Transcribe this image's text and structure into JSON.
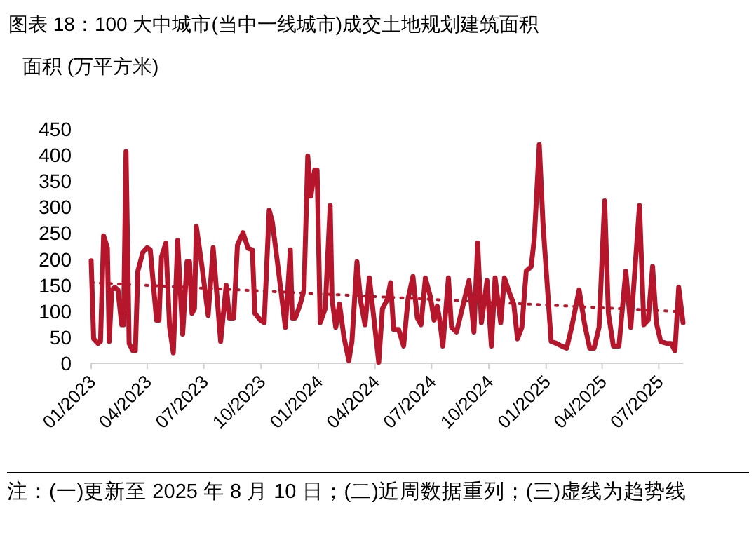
{
  "chart_data": {
    "type": "line",
    "title": "图表 18：100 大中城市(当中一线城市)成交土地规划建筑面积",
    "ylabel": "面积 (万平方米)",
    "annotations": [
      "注：(一)更新至 2025 年 8 月 10 日；(二)近周数据重列；(三)虚线为趋势线"
    ],
    "x": [
      "2023-01-01",
      "2023-01-05",
      "2023-01-12",
      "2023-01-16",
      "2023-01-21",
      "2023-01-27",
      "2023-01-30",
      "2023-02-03",
      "2023-02-08",
      "2023-02-13",
      "2023-02-19",
      "2023-02-22",
      "2023-02-26",
      "2023-03-03",
      "2023-03-09",
      "2023-03-13",
      "2023-03-17",
      "2023-03-25",
      "2023-04-01",
      "2023-04-06",
      "2023-04-16",
      "2023-04-20",
      "2023-04-24",
      "2023-05-01",
      "2023-05-07",
      "2023-05-13",
      "2023-05-20",
      "2023-05-28",
      "2023-06-04",
      "2023-06-08",
      "2023-06-12",
      "2023-06-16",
      "2023-06-19",
      "2023-06-28",
      "2023-07-08",
      "2023-07-16",
      "2023-07-21",
      "2023-07-28",
      "2023-08-06",
      "2023-08-11",
      "2023-08-18",
      "2023-08-24",
      "2023-09-02",
      "2023-09-10",
      "2023-09-17",
      "2023-09-21",
      "2023-09-30",
      "2023-10-06",
      "2023-10-14",
      "2023-10-19",
      "2023-10-29",
      "2023-11-09",
      "2023-11-17",
      "2023-11-20",
      "2023-11-25",
      "2023-12-03",
      "2023-12-09",
      "2023-12-15",
      "2023-12-20",
      "2023-12-26",
      "2023-12-30",
      "2024-01-04",
      "2024-01-12",
      "2024-01-20",
      "2024-01-23",
      "2024-01-29",
      "2024-02-04",
      "2024-02-11",
      "2024-02-19",
      "2024-02-24",
      "2024-03-03",
      "2024-03-09",
      "2024-03-16",
      "2024-03-23",
      "2024-03-31",
      "2024-04-07",
      "2024-04-13",
      "2024-04-21",
      "2024-04-26",
      "2024-05-01",
      "2024-05-09",
      "2024-05-17",
      "2024-05-24",
      "2024-06-01",
      "2024-06-08",
      "2024-06-14",
      "2024-06-21",
      "2024-06-29",
      "2024-07-05",
      "2024-07-10",
      "2024-07-14",
      "2024-07-19",
      "2024-07-28",
      "2024-08-02",
      "2024-08-10",
      "2024-08-21",
      "2024-08-30",
      "2024-09-07",
      "2024-09-13",
      "2024-09-19",
      "2024-09-28",
      "2024-10-05",
      "2024-10-11",
      "2024-10-20",
      "2024-10-26",
      "2024-11-04",
      "2024-11-10",
      "2024-11-16",
      "2024-11-23",
      "2024-11-30",
      "2024-12-08",
      "2024-12-13",
      "2024-12-21",
      "2024-12-27",
      "2025-01-09",
      "2025-01-18",
      "2025-01-26",
      "2025-02-03",
      "2025-02-11",
      "2025-02-23",
      "2025-03-04",
      "2025-03-12",
      "2025-03-19",
      "2025-03-27",
      "2025-04-05",
      "2025-04-11",
      "2025-04-19",
      "2025-04-28",
      "2025-05-09",
      "2025-05-17",
      "2025-05-31",
      "2025-06-07",
      "2025-06-14",
      "2025-06-21",
      "2025-06-27",
      "2025-07-04",
      "2025-07-14",
      "2025-07-21",
      "2025-07-27",
      "2025-08-02",
      "2025-08-09"
    ],
    "series": [
      {
        "line_style": "solid",
        "color": "#b5162b",
        "values": [
          197,
          47,
          38,
          42,
          245,
          222,
          42,
          141,
          146,
          141,
          74,
          74,
          407,
          38,
          24,
          24,
          177,
          213,
          222,
          218,
          83,
          83,
          204,
          231,
          69,
          20,
          236,
          56,
          195,
          195,
          96,
          105,
          263,
          186,
          92,
          222,
          146,
          42,
          150,
          87,
          87,
          227,
          251,
          221,
          218,
          96,
          83,
          78,
          294,
          272,
          177,
          69,
          218,
          87,
          87,
          114,
          141,
          398,
          321,
          371,
          371,
          78,
          105,
          303,
          123,
          69,
          114,
          51,
          5,
          42,
          195,
          119,
          74,
          164,
          78,
          2,
          105,
          123,
          155,
          65,
          65,
          33,
          123,
          167,
          87,
          74,
          164,
          128,
          83,
          110,
          83,
          33,
          164,
          69,
          60,
          114,
          159,
          60,
          231,
          78,
          159,
          33,
          164,
          78,
          164,
          132,
          114,
          47,
          69,
          177,
          186,
          240,
          420,
          267,
          42,
          38,
          33,
          29,
          69,
          141,
          74,
          29,
          29,
          69,
          312,
          96,
          33,
          33,
          177,
          69,
          303,
          74,
          83,
          186,
          78,
          42,
          38,
          38,
          24,
          146,
          78
        ]
      },
      {
        "line_style": "dotted",
        "color": "#b5162b",
        "x": [
          "2023-01-01",
          "2025-08-09"
        ],
        "values": [
          155,
          99
        ]
      }
    ],
    "xlim": [
      "2023-01-01",
      "2025-08-09"
    ],
    "xticks": [
      {
        "value": "2023-01-01",
        "label": "01/2023"
      },
      {
        "value": "2023-04-01",
        "label": "04/2023"
      },
      {
        "value": "2023-07-01",
        "label": "07/2023"
      },
      {
        "value": "2023-10-01",
        "label": "10/2023"
      },
      {
        "value": "2024-01-01",
        "label": "01/2024"
      },
      {
        "value": "2024-04-01",
        "label": "04/2024"
      },
      {
        "value": "2024-07-01",
        "label": "07/2024"
      },
      {
        "value": "2024-10-01",
        "label": "10/2024"
      },
      {
        "value": "2025-01-01",
        "label": "01/2025"
      },
      {
        "value": "2025-04-01",
        "label": "04/2025"
      },
      {
        "value": "2025-07-01",
        "label": "07/2025"
      }
    ],
    "ylim": [
      0,
      450
    ],
    "yticks": [
      0,
      50,
      100,
      150,
      200,
      250,
      300,
      350,
      400,
      450
    ]
  }
}
